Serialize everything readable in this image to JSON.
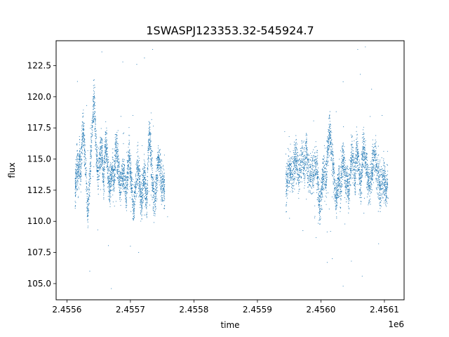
{
  "chart_data": {
    "type": "scatter",
    "title": "1SWASPJ123353.32-545924.7",
    "xlabel": "time",
    "ylabel": "flux",
    "x_offset_label": "1e6",
    "xlim": [
      2455583,
      2456131
    ],
    "ylim": [
      103.7,
      124.5
    ],
    "x_ticks": [
      2455600,
      2455700,
      2455800,
      2455900,
      2456000,
      2456100
    ],
    "x_tick_labels": [
      "2.4556",
      "2.4557",
      "2.4558",
      "2.4559",
      "2.4560",
      "2.4561"
    ],
    "y_ticks": [
      105.0,
      107.5,
      110.0,
      112.5,
      115.0,
      117.5,
      120.0,
      122.5
    ],
    "y_tick_labels": [
      "105.0",
      "107.5",
      "110.0",
      "112.5",
      "115.0",
      "117.5",
      "120.0",
      "122.5"
    ],
    "grid": false,
    "marker_color": "#1f77b4",
    "series": [
      {
        "points": [
          [
            2455613,
            111.6
          ],
          [
            2455614,
            113.5
          ],
          [
            2455616,
            114.6
          ],
          [
            2455618,
            113.8
          ],
          [
            2455620,
            115.2
          ],
          [
            2455622,
            114.0
          ],
          [
            2455624,
            116.5
          ],
          [
            2455626,
            117.6
          ],
          [
            2455628,
            115.4
          ],
          [
            2455631,
            112.8
          ],
          [
            2455633,
            110.4
          ],
          [
            2455636,
            113.6
          ],
          [
            2455638,
            115.7
          ],
          [
            2455641,
            118.3
          ],
          [
            2455643,
            120.0
          ],
          [
            2455645,
            117.2
          ],
          [
            2455647,
            115.2
          ],
          [
            2455649,
            113.6
          ],
          [
            2455652,
            115.0
          ],
          [
            2455654,
            116.0
          ],
          [
            2455656,
            114.9
          ],
          [
            2455658,
            113.1
          ],
          [
            2455660,
            115.5
          ],
          [
            2455662,
            116.4
          ],
          [
            2455664,
            114.6
          ],
          [
            2455666,
            113.4
          ],
          [
            2455668,
            112.8
          ],
          [
            2455670,
            113.5
          ],
          [
            2455672,
            114.0
          ],
          [
            2455674,
            113.2
          ],
          [
            2455676,
            114.9
          ],
          [
            2455678,
            116.2
          ],
          [
            2455680,
            114.8
          ],
          [
            2455682,
            113.6
          ],
          [
            2455684,
            112.9
          ],
          [
            2455687,
            113.4
          ],
          [
            2455689,
            114.1
          ],
          [
            2455692,
            113.0
          ],
          [
            2455694,
            111.9
          ],
          [
            2455696,
            114.4
          ],
          [
            2455698,
            115.5
          ],
          [
            2455700,
            114.2
          ],
          [
            2455702,
            113.0
          ],
          [
            2455705,
            110.8
          ],
          [
            2455707,
            112.3
          ],
          [
            2455710,
            113.9
          ],
          [
            2455712,
            114.7
          ],
          [
            2455714,
            113.2
          ],
          [
            2455716,
            112.0
          ],
          [
            2455718,
            111.4
          ],
          [
            2455720,
            113.0
          ],
          [
            2455722,
            114.0
          ],
          [
            2455724,
            112.5
          ],
          [
            2455726,
            111.2
          ],
          [
            2455728,
            115.5
          ],
          [
            2455730,
            117.1
          ],
          [
            2455732,
            115.8
          ],
          [
            2455734,
            113.6
          ],
          [
            2455736,
            112.1
          ],
          [
            2455739,
            111.7
          ],
          [
            2455741,
            113.2
          ],
          [
            2455743,
            114.5
          ],
          [
            2455745,
            115.1
          ],
          [
            2455748,
            113.8
          ],
          [
            2455750,
            112.6
          ],
          [
            2455752,
            113.3
          ],
          [
            2455754,
            112.4
          ],
          [
            2455655,
            123.6
          ],
          [
            2455688,
            122.8
          ],
          [
            2455710,
            122.6
          ],
          [
            2455735,
            123.8
          ],
          [
            2455636,
            106.0
          ],
          [
            2455670,
            104.6
          ],
          [
            2455713,
            107.5
          ],
          [
            2455700,
            108.0
          ],
          [
            2455945,
            112.4
          ],
          [
            2455947,
            113.3
          ],
          [
            2455950,
            114.1
          ],
          [
            2455952,
            114.5
          ],
          [
            2455955,
            113.6
          ],
          [
            2455958,
            114.6
          ],
          [
            2455960,
            115.2
          ],
          [
            2455962,
            114.8
          ],
          [
            2455965,
            113.7
          ],
          [
            2455968,
            114.5
          ],
          [
            2455971,
            115.4
          ],
          [
            2455974,
            114.3
          ],
          [
            2455977,
            116.0
          ],
          [
            2455979,
            114.6
          ],
          [
            2455982,
            113.4
          ],
          [
            2455985,
            113.9
          ],
          [
            2455988,
            113.7
          ],
          [
            2455991,
            114.7
          ],
          [
            2455994,
            114.1
          ],
          [
            2455996,
            112.6
          ],
          [
            2455998,
            111.0
          ],
          [
            2456001,
            112.3
          ],
          [
            2456003,
            113.4
          ],
          [
            2456005,
            114.3
          ],
          [
            2456008,
            113.2
          ],
          [
            2456010,
            115.6
          ],
          [
            2456012,
            116.3
          ],
          [
            2456014,
            117.6
          ],
          [
            2456016,
            116.2
          ],
          [
            2456019,
            114.5
          ],
          [
            2456021,
            113.3
          ],
          [
            2456024,
            111.8
          ],
          [
            2456026,
            112.7
          ],
          [
            2456028,
            113.5
          ],
          [
            2456031,
            112.4
          ],
          [
            2456033,
            114.2
          ],
          [
            2456035,
            115.5
          ],
          [
            2456037,
            114.1
          ],
          [
            2456040,
            112.7
          ],
          [
            2456042,
            113.3
          ],
          [
            2456044,
            112.1
          ],
          [
            2456047,
            114.6
          ],
          [
            2456049,
            115.3
          ],
          [
            2456052,
            114.2
          ],
          [
            2456054,
            113.1
          ],
          [
            2456056,
            116.2
          ],
          [
            2456058,
            115.0
          ],
          [
            2456061,
            113.7
          ],
          [
            2456063,
            112.9
          ],
          [
            2456065,
            114.7
          ],
          [
            2456067,
            116.0
          ],
          [
            2456069,
            115.3
          ],
          [
            2456072,
            114.2
          ],
          [
            2456074,
            113.6
          ],
          [
            2456076,
            112.7
          ],
          [
            2456079,
            113.4
          ],
          [
            2456081,
            114.3
          ],
          [
            2456083,
            114.9
          ],
          [
            2456086,
            115.2
          ],
          [
            2456088,
            114.1
          ],
          [
            2456091,
            113.6
          ],
          [
            2456093,
            112.6
          ],
          [
            2456096,
            113.0
          ],
          [
            2456099,
            113.6
          ],
          [
            2456101,
            113.1
          ],
          [
            2456103,
            112.3
          ],
          [
            2456105,
            113.0
          ],
          [
            2456058,
            123.8
          ],
          [
            2456070,
            124.0
          ],
          [
            2456062,
            121.8
          ],
          [
            2456035,
            121.2
          ],
          [
            2456018,
            107.0
          ],
          [
            2456048,
            106.8
          ],
          [
            2456065,
            105.6
          ],
          [
            2456035,
            104.8
          ]
        ],
        "clusters": [
          {
            "t_start": 2455613,
            "t_end": 2455760,
            "dips": 18
          },
          {
            "t_start": 2455942,
            "t_end": 2456107,
            "dips": 22
          }
        ]
      }
    ]
  }
}
